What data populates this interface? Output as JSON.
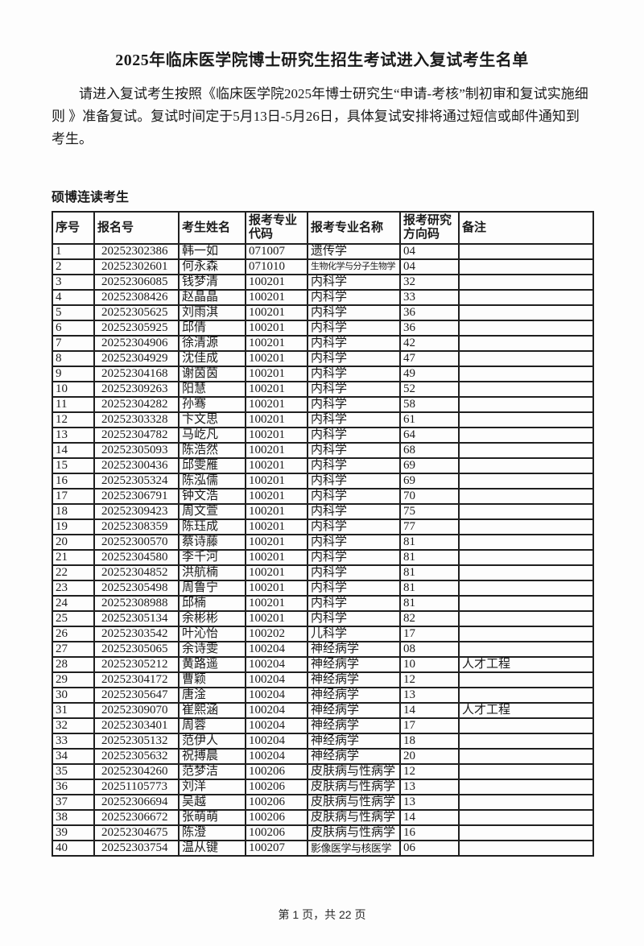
{
  "page": {
    "title": "2025年临床医学院博士研究生招生考试进入复试考生名单",
    "intro": "请进入复试考生按照《临床医学院2025年博士研究生“申请-考核”制初审和复试实施细则 》准备复试。复试时间定于5月13日-5月26日，具体复试安排将通过短信或邮件通知到考生。",
    "section_heading": "硕博连读考生",
    "footer": "第 1 页，共 22 页"
  },
  "colors": {
    "text": "#1a1a1a",
    "border": "#1f1f1f",
    "background": "#fdfdfd"
  },
  "table": {
    "headers": [
      "序号",
      "报名号",
      "考生姓名",
      "报考专业代码",
      "报考专业名称",
      "报考研究方向码",
      "备注"
    ],
    "rows": [
      {
        "no": "1",
        "reg_no": "20252302386",
        "name": "韩一如",
        "major_code": "071007",
        "major_name": "遗传学",
        "direction_code": "04",
        "remark": ""
      },
      {
        "no": "2",
        "reg_no": "20252302601",
        "name": "何永森",
        "major_code": "071010",
        "major_name": "生物化学与分子生物学",
        "direction_code": "04",
        "remark": ""
      },
      {
        "no": "3",
        "reg_no": "20252306085",
        "name": "钱梦清",
        "major_code": "100201",
        "major_name": "内科学",
        "direction_code": "32",
        "remark": ""
      },
      {
        "no": "4",
        "reg_no": "20252308426",
        "name": "赵晶晶",
        "major_code": "100201",
        "major_name": "内科学",
        "direction_code": "33",
        "remark": ""
      },
      {
        "no": "5",
        "reg_no": "20252305625",
        "name": "刘雨淇",
        "major_code": "100201",
        "major_name": "内科学",
        "direction_code": "36",
        "remark": ""
      },
      {
        "no": "6",
        "reg_no": "20252305925",
        "name": "邱倩",
        "major_code": "100201",
        "major_name": "内科学",
        "direction_code": "36",
        "remark": ""
      },
      {
        "no": "7",
        "reg_no": "20252304906",
        "name": "徐清源",
        "major_code": "100201",
        "major_name": "内科学",
        "direction_code": "42",
        "remark": ""
      },
      {
        "no": "8",
        "reg_no": "20252304929",
        "name": "沈佳成",
        "major_code": "100201",
        "major_name": "内科学",
        "direction_code": "47",
        "remark": ""
      },
      {
        "no": "9",
        "reg_no": "20252304168",
        "name": "谢茵茵",
        "major_code": "100201",
        "major_name": "内科学",
        "direction_code": "49",
        "remark": ""
      },
      {
        "no": "10",
        "reg_no": "20252309263",
        "name": "阳慧",
        "major_code": "100201",
        "major_name": "内科学",
        "direction_code": "52",
        "remark": ""
      },
      {
        "no": "11",
        "reg_no": "20252304282",
        "name": "孙骞",
        "major_code": "100201",
        "major_name": "内科学",
        "direction_code": "58",
        "remark": ""
      },
      {
        "no": "12",
        "reg_no": "20252303328",
        "name": "卞文思",
        "major_code": "100201",
        "major_name": "内科学",
        "direction_code": "61",
        "remark": ""
      },
      {
        "no": "13",
        "reg_no": "20252304782",
        "name": "马屹凡",
        "major_code": "100201",
        "major_name": "内科学",
        "direction_code": "64",
        "remark": ""
      },
      {
        "no": "14",
        "reg_no": "20252305093",
        "name": "陈浩然",
        "major_code": "100201",
        "major_name": "内科学",
        "direction_code": "68",
        "remark": ""
      },
      {
        "no": "15",
        "reg_no": "20252300436",
        "name": "邱雯雁",
        "major_code": "100201",
        "major_name": "内科学",
        "direction_code": "69",
        "remark": ""
      },
      {
        "no": "16",
        "reg_no": "20252305324",
        "name": "陈泓儒",
        "major_code": "100201",
        "major_name": "内科学",
        "direction_code": "69",
        "remark": ""
      },
      {
        "no": "17",
        "reg_no": "20252306791",
        "name": "钟文浩",
        "major_code": "100201",
        "major_name": "内科学",
        "direction_code": "70",
        "remark": ""
      },
      {
        "no": "18",
        "reg_no": "20252309423",
        "name": "周文萱",
        "major_code": "100201",
        "major_name": "内科学",
        "direction_code": "75",
        "remark": ""
      },
      {
        "no": "19",
        "reg_no": "20252308359",
        "name": "陈珏成",
        "major_code": "100201",
        "major_name": "内科学",
        "direction_code": "77",
        "remark": ""
      },
      {
        "no": "20",
        "reg_no": "20252300570",
        "name": "蔡诗藤",
        "major_code": "100201",
        "major_name": "内科学",
        "direction_code": "81",
        "remark": ""
      },
      {
        "no": "21",
        "reg_no": "20252304580",
        "name": "李千河",
        "major_code": "100201",
        "major_name": "内科学",
        "direction_code": "81",
        "remark": ""
      },
      {
        "no": "22",
        "reg_no": "20252304852",
        "name": "洪航楠",
        "major_code": "100201",
        "major_name": "内科学",
        "direction_code": "81",
        "remark": ""
      },
      {
        "no": "23",
        "reg_no": "20252305498",
        "name": "周鲁宁",
        "major_code": "100201",
        "major_name": "内科学",
        "direction_code": "81",
        "remark": ""
      },
      {
        "no": "24",
        "reg_no": "20252308988",
        "name": "邱楠",
        "major_code": "100201",
        "major_name": "内科学",
        "direction_code": "81",
        "remark": ""
      },
      {
        "no": "25",
        "reg_no": "20252305134",
        "name": "余彬彬",
        "major_code": "100201",
        "major_name": "内科学",
        "direction_code": "82",
        "remark": ""
      },
      {
        "no": "26",
        "reg_no": "20252303542",
        "name": "叶沁怡",
        "major_code": "100202",
        "major_name": "儿科学",
        "direction_code": "17",
        "remark": ""
      },
      {
        "no": "27",
        "reg_no": "20252305065",
        "name": "余诗雯",
        "major_code": "100204",
        "major_name": "神经病学",
        "direction_code": "08",
        "remark": ""
      },
      {
        "no": "28",
        "reg_no": "20252305212",
        "name": "黄路遥",
        "major_code": "100204",
        "major_name": "神经病学",
        "direction_code": "10",
        "remark": "人才工程"
      },
      {
        "no": "29",
        "reg_no": "20252304172",
        "name": "曹颖",
        "major_code": "100204",
        "major_name": "神经病学",
        "direction_code": "12",
        "remark": ""
      },
      {
        "no": "30",
        "reg_no": "20252305647",
        "name": "唐淦",
        "major_code": "100204",
        "major_name": "神经病学",
        "direction_code": "13",
        "remark": ""
      },
      {
        "no": "31",
        "reg_no": "20252309070",
        "name": "崔熙涵",
        "major_code": "100204",
        "major_name": "神经病学",
        "direction_code": "14",
        "remark": "人才工程"
      },
      {
        "no": "32",
        "reg_no": "20252303401",
        "name": "周蓉",
        "major_code": "100204",
        "major_name": "神经病学",
        "direction_code": "17",
        "remark": ""
      },
      {
        "no": "33",
        "reg_no": "20252305132",
        "name": "范伊人",
        "major_code": "100204",
        "major_name": "神经病学",
        "direction_code": "18",
        "remark": ""
      },
      {
        "no": "34",
        "reg_no": "20252305632",
        "name": "祝搏晨",
        "major_code": "100204",
        "major_name": "神经病学",
        "direction_code": "20",
        "remark": ""
      },
      {
        "no": "35",
        "reg_no": "20252304260",
        "name": "范梦洁",
        "major_code": "100206",
        "major_name": "皮肤病与性病学",
        "direction_code": "12",
        "remark": ""
      },
      {
        "no": "36",
        "reg_no": "20251105773",
        "name": "刘洋",
        "major_code": "100206",
        "major_name": "皮肤病与性病学",
        "direction_code": "13",
        "remark": ""
      },
      {
        "no": "37",
        "reg_no": "20252306694",
        "name": "吴越",
        "major_code": "100206",
        "major_name": "皮肤病与性病学",
        "direction_code": "13",
        "remark": ""
      },
      {
        "no": "38",
        "reg_no": "20252306672",
        "name": "张萌萌",
        "major_code": "100206",
        "major_name": "皮肤病与性病学",
        "direction_code": "14",
        "remark": ""
      },
      {
        "no": "39",
        "reg_no": "20252304675",
        "name": "陈澄",
        "major_code": "100206",
        "major_name": "皮肤病与性病学",
        "direction_code": "16",
        "remark": ""
      },
      {
        "no": "40",
        "reg_no": "20252303754",
        "name": "温从键",
        "major_code": "100207",
        "major_name": "影像医学与核医学",
        "direction_code": "06",
        "remark": ""
      }
    ]
  }
}
